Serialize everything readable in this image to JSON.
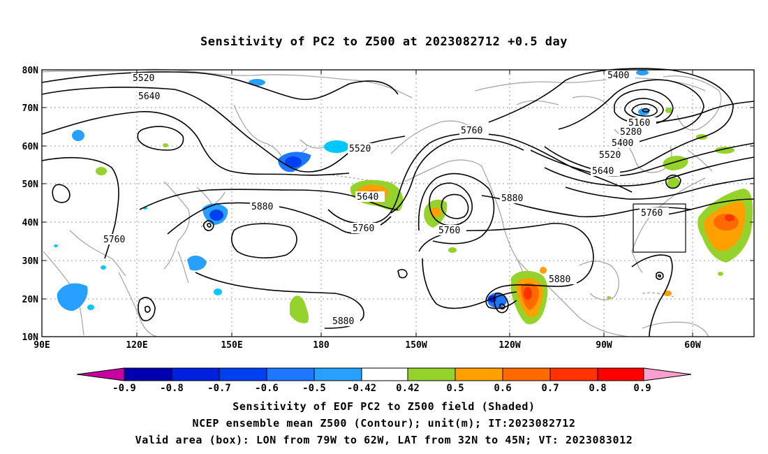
{
  "title": "Sensitivity of PC2 to Z500 at 2023082712 +0.5 day",
  "lat_labels": [
    "80N",
    "70N",
    "60N",
    "50N",
    "40N",
    "30N",
    "20N",
    "10N"
  ],
  "lon_labels": [
    "90E",
    "120E",
    "150E",
    "180",
    "150W",
    "120W",
    "90W",
    "60W"
  ],
  "contour_labels": [
    "5520",
    "5640",
    "5400",
    "5160",
    "5280",
    "5400",
    "5520",
    "5640",
    "5760",
    "5520",
    "5640",
    "5880",
    "5760",
    "5760",
    "5880",
    "5760",
    "5880",
    "5880",
    "5760"
  ],
  "colorbar": {
    "labels": [
      "-0.9",
      "-0.8",
      "-0.7",
      "-0.6",
      "-0.5",
      "-0.42",
      "0.42",
      "0.5",
      "0.6",
      "0.7",
      "0.8",
      "0.9"
    ],
    "colors": [
      "#0000b0",
      "#0020e0",
      "#0040f0",
      "#1e78ff",
      "#28a0ff",
      "#00c8ff",
      "#ffffff",
      "#96d22c",
      "#ffa000",
      "#ff6a00",
      "#ff3200",
      "#ff0000"
    ],
    "low_end_color": "#c800a0",
    "high_end_color": "#ff9fd0"
  },
  "valid_box": {
    "lon_from": "79W",
    "lon_to": "62W",
    "lat_from": "32N",
    "lat_to": "45N"
  },
  "footer": [
    "Sensitivity of EOF PC2 to Z500 field (Shaded)",
    "NCEP ensemble mean Z500 (Contour); unit(m); IT:2023082712",
    "Valid area (box): LON from 79W to 62W, LAT from 32N to 45N; VT: 2023083012"
  ]
}
